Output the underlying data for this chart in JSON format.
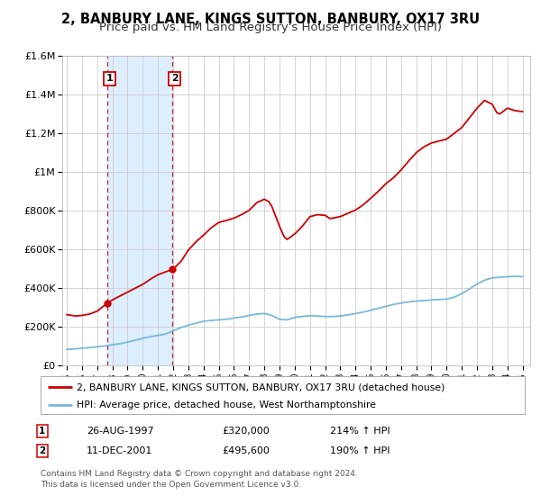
{
  "title": "2, BANBURY LANE, KINGS SUTTON, BANBURY, OX17 3RU",
  "subtitle": "Price paid vs. HM Land Registry's House Price Index (HPI)",
  "ylim": [
    0,
    1600000
  ],
  "xlim": [
    1994.7,
    2025.5
  ],
  "yticks": [
    0,
    200000,
    400000,
    600000,
    800000,
    1000000,
    1200000,
    1400000,
    1600000
  ],
  "ytick_labels": [
    "£0",
    "£200K",
    "£400K",
    "£600K",
    "£800K",
    "£1M",
    "£1.2M",
    "£1.4M",
    "£1.6M"
  ],
  "sale1_x": 1997.65,
  "sale1_y": 320000,
  "sale1_label": "1",
  "sale1_date": "26-AUG-1997",
  "sale1_price": "£320,000",
  "sale1_hpi": "214% ↑ HPI",
  "sale2_x": 2001.95,
  "sale2_y": 495600,
  "sale2_label": "2",
  "sale2_date": "11-DEC-2001",
  "sale2_price": "£495,600",
  "sale2_hpi": "190% ↑ HPI",
  "hpi_line_color": "#7ab8d9",
  "price_line_color": "#cc0000",
  "shade_color": "#ddeeff",
  "legend_label_price": "2, BANBURY LANE, KINGS SUTTON, BANBURY, OX17 3RU (detached house)",
  "legend_label_hpi": "HPI: Average price, detached house, West Northamptonshire",
  "footnote": "Contains HM Land Registry data © Crown copyright and database right 2024.\nThis data is licensed under the Open Government Licence v3.0.",
  "title_fontsize": 10.5,
  "subtitle_fontsize": 9.5,
  "background_color": "#ffffff",
  "grid_color": "#cccccc",
  "hpi_anchors": [
    [
      1995.0,
      82000
    ],
    [
      1996.0,
      88000
    ],
    [
      1997.0,
      96000
    ],
    [
      1997.5,
      100000
    ],
    [
      1998.0,
      107000
    ],
    [
      1998.5,
      112000
    ],
    [
      1999.0,
      120000
    ],
    [
      1999.5,
      130000
    ],
    [
      2000.0,
      140000
    ],
    [
      2000.5,
      148000
    ],
    [
      2001.0,
      155000
    ],
    [
      2001.5,
      162000
    ],
    [
      2002.0,
      178000
    ],
    [
      2002.5,
      195000
    ],
    [
      2003.0,
      208000
    ],
    [
      2003.5,
      218000
    ],
    [
      2004.0,
      228000
    ],
    [
      2004.5,
      232000
    ],
    [
      2005.0,
      235000
    ],
    [
      2005.5,
      238000
    ],
    [
      2006.0,
      244000
    ],
    [
      2006.5,
      250000
    ],
    [
      2007.0,
      258000
    ],
    [
      2007.5,
      265000
    ],
    [
      2008.0,
      268000
    ],
    [
      2008.5,
      258000
    ],
    [
      2009.0,
      238000
    ],
    [
      2009.5,
      235000
    ],
    [
      2010.0,
      248000
    ],
    [
      2010.5,
      252000
    ],
    [
      2011.0,
      257000
    ],
    [
      2011.5,
      255000
    ],
    [
      2012.0,
      252000
    ],
    [
      2012.5,
      252000
    ],
    [
      2013.0,
      255000
    ],
    [
      2013.5,
      260000
    ],
    [
      2014.0,
      268000
    ],
    [
      2014.5,
      275000
    ],
    [
      2015.0,
      285000
    ],
    [
      2015.5,
      295000
    ],
    [
      2016.0,
      305000
    ],
    [
      2016.5,
      315000
    ],
    [
      2017.0,
      322000
    ],
    [
      2017.5,
      328000
    ],
    [
      2018.0,
      332000
    ],
    [
      2018.5,
      335000
    ],
    [
      2019.0,
      338000
    ],
    [
      2019.5,
      340000
    ],
    [
      2020.0,
      342000
    ],
    [
      2020.5,
      352000
    ],
    [
      2021.0,
      370000
    ],
    [
      2021.5,
      395000
    ],
    [
      2022.0,
      420000
    ],
    [
      2022.5,
      440000
    ],
    [
      2023.0,
      452000
    ],
    [
      2023.5,
      455000
    ],
    [
      2024.0,
      458000
    ],
    [
      2024.5,
      460000
    ],
    [
      2025.0,
      458000
    ]
  ],
  "price_anchors": [
    [
      1995.0,
      262000
    ],
    [
      1995.3,
      258000
    ],
    [
      1995.6,
      255000
    ],
    [
      1996.0,
      258000
    ],
    [
      1996.5,
      265000
    ],
    [
      1997.0,
      280000
    ],
    [
      1997.65,
      320000
    ],
    [
      1998.0,
      338000
    ],
    [
      1998.5,
      358000
    ],
    [
      1999.0,
      378000
    ],
    [
      1999.5,
      398000
    ],
    [
      2000.0,
      418000
    ],
    [
      2000.5,
      445000
    ],
    [
      2001.0,
      468000
    ],
    [
      2001.95,
      495600
    ],
    [
      2002.0,
      498000
    ],
    [
      2002.5,
      535000
    ],
    [
      2003.0,
      595000
    ],
    [
      2003.5,
      638000
    ],
    [
      2004.0,
      672000
    ],
    [
      2004.5,
      710000
    ],
    [
      2005.0,
      738000
    ],
    [
      2005.5,
      748000
    ],
    [
      2006.0,
      760000
    ],
    [
      2006.5,
      778000
    ],
    [
      2007.0,
      800000
    ],
    [
      2007.5,
      840000
    ],
    [
      2008.0,
      858000
    ],
    [
      2008.3,
      845000
    ],
    [
      2008.5,
      820000
    ],
    [
      2009.0,
      718000
    ],
    [
      2009.3,
      665000
    ],
    [
      2009.5,
      650000
    ],
    [
      2010.0,
      678000
    ],
    [
      2010.5,
      718000
    ],
    [
      2011.0,
      768000
    ],
    [
      2011.5,
      778000
    ],
    [
      2012.0,
      775000
    ],
    [
      2012.3,
      758000
    ],
    [
      2012.5,
      760000
    ],
    [
      2013.0,
      768000
    ],
    [
      2013.5,
      785000
    ],
    [
      2014.0,
      802000
    ],
    [
      2014.5,
      828000
    ],
    [
      2015.0,
      862000
    ],
    [
      2015.5,
      898000
    ],
    [
      2016.0,
      938000
    ],
    [
      2016.5,
      968000
    ],
    [
      2017.0,
      1008000
    ],
    [
      2017.5,
      1055000
    ],
    [
      2018.0,
      1098000
    ],
    [
      2018.5,
      1128000
    ],
    [
      2019.0,
      1148000
    ],
    [
      2019.5,
      1158000
    ],
    [
      2020.0,
      1168000
    ],
    [
      2020.5,
      1198000
    ],
    [
      2021.0,
      1228000
    ],
    [
      2021.5,
      1278000
    ],
    [
      2022.0,
      1328000
    ],
    [
      2022.5,
      1368000
    ],
    [
      2023.0,
      1348000
    ],
    [
      2023.3,
      1305000
    ],
    [
      2023.5,
      1298000
    ],
    [
      2024.0,
      1328000
    ],
    [
      2024.5,
      1315000
    ],
    [
      2025.0,
      1310000
    ]
  ]
}
